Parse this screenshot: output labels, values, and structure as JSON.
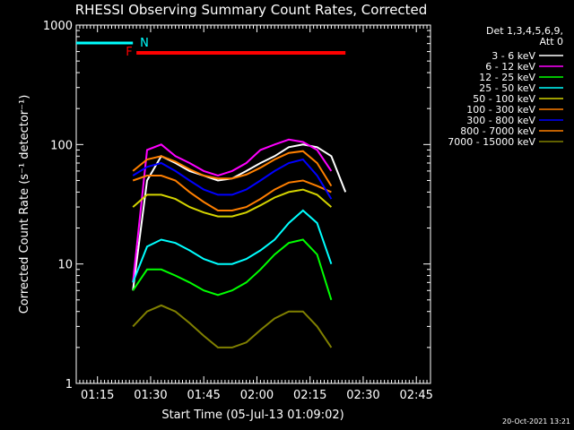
{
  "chart_data": {
    "type": "line",
    "title": "RHESSI Observing Summary Count Rates, Corrected",
    "xlabel": "Start Time (05-Jul-13 01:09:02)",
    "ylabel": "Corrected Count Rate (s⁻¹ detector⁻¹)",
    "y_scale": "log",
    "ylim": [
      1,
      1000
    ],
    "xlim_minutes_after_01_09": [
      0,
      100
    ],
    "x_ticks": [
      {
        "label": "01:15",
        "minute": 6
      },
      {
        "label": "01:30",
        "minute": 21
      },
      {
        "label": "01:45",
        "minute": 36
      },
      {
        "label": "02:00",
        "minute": 51
      },
      {
        "label": "02:15",
        "minute": 66
      },
      {
        "label": "02:30",
        "minute": 81
      },
      {
        "label": "02:45",
        "minute": 96
      }
    ],
    "y_ticks": [
      {
        "label": "1000",
        "value": 1000
      },
      {
        "label": "100",
        "value": 100
      },
      {
        "label": "10",
        "value": 10
      },
      {
        "label": "1",
        "value": 1
      }
    ],
    "legend_header": [
      "Det 1,3,4,5,6,9,",
      "Att 0"
    ],
    "legend_placement": "right",
    "series": [
      {
        "name": "3 - 6 keV",
        "color": "#ffffff",
        "values": [
          null,
          null,
          null,
          null,
          6,
          50,
          80,
          70,
          60,
          55,
          50,
          52,
          60,
          70,
          80,
          95,
          100,
          95,
          80,
          40,
          null,
          null,
          null,
          null,
          null
        ]
      },
      {
        "name": "6 - 12 keV",
        "color": "#ff00ff",
        "values": [
          null,
          null,
          null,
          null,
          7,
          90,
          100,
          80,
          70,
          60,
          55,
          60,
          70,
          90,
          100,
          110,
          105,
          90,
          60,
          null,
          null,
          null,
          null,
          null,
          null
        ]
      },
      {
        "name": "12 - 25 keV",
        "color": "#00ff00",
        "values": [
          null,
          null,
          null,
          null,
          6,
          9,
          9,
          8,
          7,
          6,
          5.5,
          6,
          7,
          9,
          12,
          15,
          16,
          12,
          5,
          null,
          null,
          null,
          null,
          null,
          null
        ]
      },
      {
        "name": "25 - 50 keV",
        "color": "#00ffff",
        "values": [
          null,
          null,
          null,
          null,
          7,
          14,
          16,
          15,
          13,
          11,
          10,
          10,
          11,
          13,
          16,
          22,
          28,
          22,
          10,
          null,
          null,
          null,
          null,
          null,
          null
        ]
      },
      {
        "name": "50 - 100 keV",
        "color": "#d4d400",
        "values": [
          null,
          null,
          null,
          null,
          30,
          38,
          38,
          35,
          30,
          27,
          25,
          25,
          27,
          31,
          36,
          40,
          42,
          38,
          30,
          null,
          null,
          null,
          null,
          null,
          null
        ]
      },
      {
        "name": "100 - 300 keV",
        "color": "#ff7f00",
        "values": [
          null,
          null,
          null,
          null,
          50,
          55,
          55,
          50,
          40,
          33,
          28,
          28,
          30,
          35,
          42,
          48,
          50,
          45,
          40,
          null,
          null,
          null,
          null,
          null,
          null
        ]
      },
      {
        "name": "300 - 800 keV",
        "color": "#0000ff",
        "values": [
          null,
          null,
          null,
          null,
          55,
          65,
          70,
          60,
          50,
          42,
          38,
          38,
          42,
          50,
          60,
          70,
          75,
          55,
          35,
          null,
          null,
          null,
          null,
          null,
          null
        ]
      },
      {
        "name": "800 - 7000 keV",
        "color": "#ff8000",
        "values": [
          null,
          null,
          null,
          null,
          60,
          75,
          80,
          72,
          62,
          55,
          52,
          52,
          56,
          64,
          75,
          85,
          88,
          70,
          45,
          null,
          null,
          null,
          null,
          null,
          null
        ]
      },
      {
        "name": "7000 - 15000 keV",
        "color": "#808000",
        "values": [
          null,
          null,
          null,
          null,
          3,
          4,
          4.5,
          4,
          3.2,
          2.5,
          2,
          2,
          2.2,
          2.8,
          3.5,
          4,
          4,
          3,
          2,
          null,
          null,
          null,
          null,
          null,
          null
        ]
      }
    ],
    "annotations": [
      {
        "label": "N",
        "color": "#00ffff"
      },
      {
        "label": "F",
        "color": "#ff0000"
      }
    ]
  },
  "footer": {
    "date": "20-Oct-2021 13:21"
  }
}
